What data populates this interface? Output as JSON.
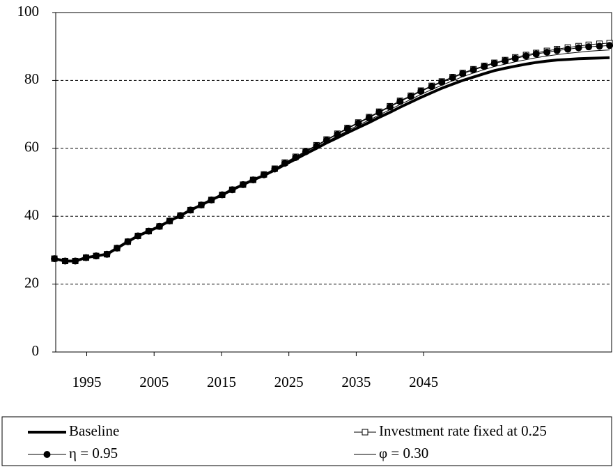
{
  "chart_data": {
    "type": "line",
    "x": [
      1990.2,
      1991.8,
      1993.3,
      1994.9,
      1996.4,
      1998.0,
      1999.5,
      2001.1,
      2002.6,
      2004.2,
      2005.8,
      2007.3,
      2008.9,
      2010.4,
      2012.0,
      2013.5,
      2015.1,
      2016.6,
      2018.2,
      2019.7,
      2021.3,
      2022.9,
      2024.4,
      2026.0,
      2027.5,
      2029.1,
      2030.6,
      2032.2,
      2033.7,
      2035.3,
      2036.9,
      2038.4,
      2040.0,
      2041.5,
      2043.1,
      2044.6,
      2046.2,
      2047.7,
      2049.3,
      2050.8,
      2052.4,
      2054.0,
      2055.5,
      2057.1,
      2058.6,
      2060.2,
      2061.7,
      2063.3,
      2064.8,
      2066.4,
      2068.0,
      2069.5,
      2071.1,
      2072.6
    ],
    "series": [
      {
        "name": "Baseline",
        "color": "#000000",
        "line_width": 4,
        "marker": "none",
        "values": [
          27.5,
          26.8,
          26.8,
          27.8,
          28.3,
          28.8,
          30.6,
          32.5,
          34.2,
          35.6,
          37.0,
          38.6,
          40.2,
          41.8,
          43.3,
          44.8,
          46.3,
          47.8,
          49.3,
          50.7,
          52.0,
          53.6,
          55.2,
          56.8,
          58.4,
          60.0,
          61.6,
          63.1,
          64.6,
          66.1,
          67.6,
          69.1,
          70.6,
          72.1,
          73.6,
          75.0,
          76.4,
          77.7,
          78.9,
          80.0,
          81.0,
          82.0,
          82.9,
          83.6,
          84.2,
          84.8,
          85.3,
          85.7,
          86.0,
          86.2,
          86.4,
          86.5,
          86.6,
          86.7
        ]
      },
      {
        "name": "Investment rate fixed at 0.25",
        "color": "#000000",
        "line_width": 1,
        "marker": "square",
        "values": [
          27.5,
          26.8,
          26.8,
          27.8,
          28.3,
          28.8,
          30.6,
          32.5,
          34.2,
          35.6,
          37.0,
          38.6,
          40.2,
          41.8,
          43.3,
          44.8,
          46.3,
          47.8,
          49.3,
          50.7,
          52.3,
          54.0,
          55.8,
          57.5,
          59.2,
          60.9,
          62.6,
          64.3,
          66.0,
          67.6,
          69.2,
          70.8,
          72.4,
          74.0,
          75.5,
          77.0,
          78.4,
          79.7,
          81.0,
          82.2,
          83.3,
          84.3,
          85.2,
          86.0,
          86.8,
          87.5,
          88.1,
          88.7,
          89.2,
          89.7,
          90.1,
          90.5,
          90.8,
          91.0
        ]
      },
      {
        "name": "η = 0.95",
        "color": "#000000",
        "line_width": 1,
        "marker": "circle",
        "values": [
          27.5,
          26.8,
          26.8,
          27.8,
          28.3,
          28.8,
          30.6,
          32.5,
          34.2,
          35.6,
          37.0,
          38.6,
          40.2,
          41.8,
          43.3,
          44.8,
          46.3,
          47.8,
          49.3,
          50.7,
          52.2,
          53.9,
          55.6,
          57.3,
          59.0,
          60.7,
          62.4,
          64.1,
          65.8,
          67.4,
          69.0,
          70.6,
          72.2,
          73.8,
          75.3,
          76.8,
          78.2,
          79.5,
          80.8,
          82.0,
          83.1,
          84.1,
          85.0,
          85.8,
          86.5,
          87.2,
          87.8,
          88.3,
          88.8,
          89.2,
          89.6,
          89.9,
          90.1,
          90.3
        ]
      },
      {
        "name": "φ = 0.30",
        "color": "#000000",
        "line_width": 1,
        "marker": "none",
        "values": [
          27.5,
          26.8,
          26.8,
          27.8,
          28.3,
          28.8,
          30.6,
          32.5,
          34.2,
          35.6,
          37.0,
          38.6,
          40.2,
          41.8,
          43.3,
          44.8,
          46.3,
          47.8,
          49.3,
          50.7,
          52.1,
          53.8,
          55.4,
          57.0,
          58.7,
          60.3,
          62.0,
          63.6,
          65.2,
          66.8,
          68.3,
          69.8,
          71.4,
          72.9,
          74.4,
          75.9,
          77.3,
          78.6,
          79.9,
          81.1,
          82.2,
          83.2,
          84.1,
          84.8,
          85.5,
          86.1,
          86.7,
          87.2,
          87.6,
          88.0,
          88.3,
          88.6,
          88.8,
          89.0
        ]
      }
    ],
    "xlim": [
      1990.4,
      2072.9
    ],
    "xticks": [
      1995,
      2005,
      2015,
      2025,
      2035,
      2045
    ],
    "ylim": [
      0,
      100
    ],
    "yticks": [
      0,
      20,
      40,
      60,
      80,
      100
    ],
    "grid": true,
    "legend": "bottom"
  }
}
